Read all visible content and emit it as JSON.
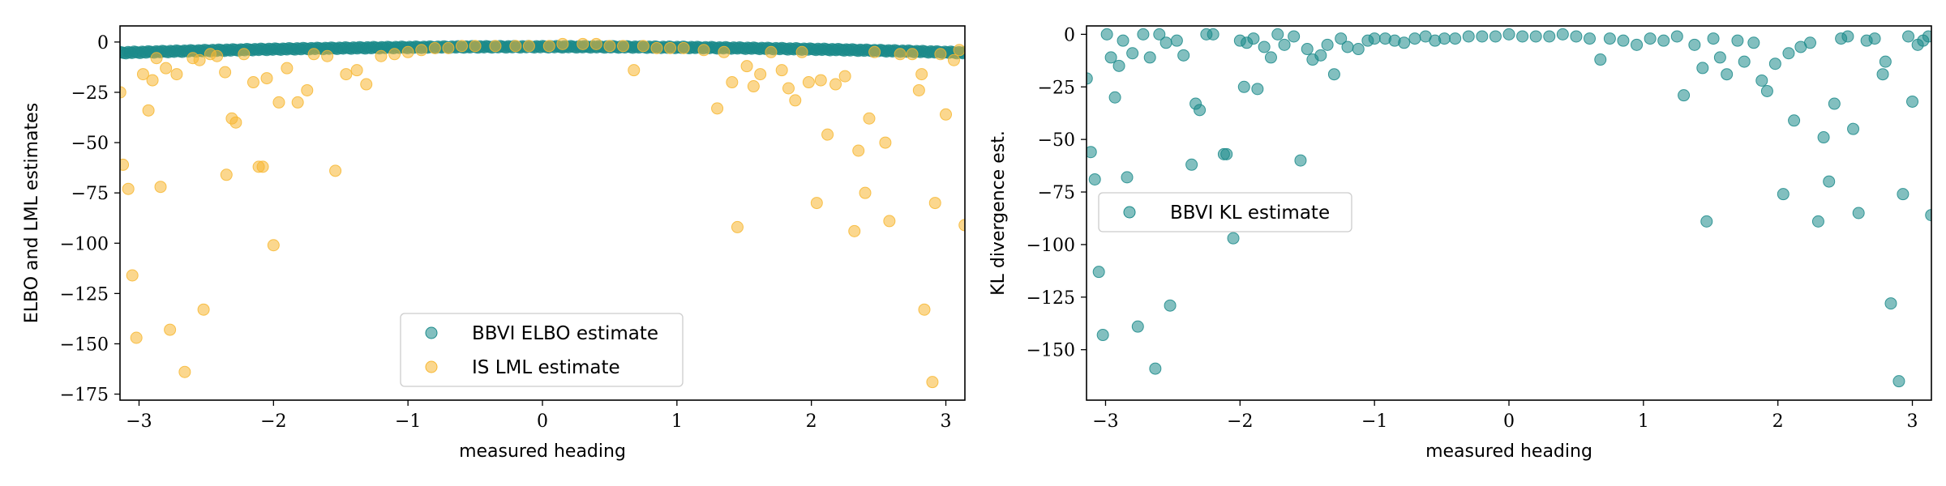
{
  "chart_data": [
    {
      "type": "scatter",
      "xlabel": "measured heading",
      "ylabel": "ELBO and LML estimates",
      "xlim": [
        -3.14159,
        3.14159
      ],
      "ylim": [
        -178,
        8
      ],
      "xticks": [
        -3,
        -2,
        -1,
        0,
        1,
        2,
        3
      ],
      "yticks": [
        0,
        -25,
        -50,
        -75,
        -100,
        -125,
        -150,
        -175
      ],
      "xtick_labels": [
        "−3",
        "−2",
        "−1",
        "0",
        "1",
        "2",
        "3"
      ],
      "ytick_labels": [
        "0",
        "−25",
        "−50",
        "−75",
        "−100",
        "−125",
        "−150",
        "−175"
      ],
      "legend_position": "lower-center",
      "series": [
        {
          "name": "BBVI ELBO estimate",
          "color": "#1b8a8a",
          "band_note": "dense band of ~400 points from about -5 at the edges to about -2 near 0",
          "points": []
        },
        {
          "name": "IS LML estimate",
          "color": "#f7b731",
          "points": [
            [
              -3.14,
              -25
            ],
            [
              -3.12,
              -61
            ],
            [
              -3.08,
              -73
            ],
            [
              -3.05,
              -116
            ],
            [
              -3.02,
              -147
            ],
            [
              -2.97,
              -16
            ],
            [
              -2.93,
              -34
            ],
            [
              -2.9,
              -19
            ],
            [
              -2.87,
              -8
            ],
            [
              -2.84,
              -72
            ],
            [
              -2.8,
              -13
            ],
            [
              -2.77,
              -143
            ],
            [
              -2.72,
              -16
            ],
            [
              -2.66,
              -164
            ],
            [
              -2.6,
              -8
            ],
            [
              -2.55,
              -9
            ],
            [
              -2.52,
              -133
            ],
            [
              -2.47,
              -6
            ],
            [
              -2.42,
              -7
            ],
            [
              -2.36,
              -15
            ],
            [
              -2.35,
              -66
            ],
            [
              -2.31,
              -38
            ],
            [
              -2.28,
              -40
            ],
            [
              -2.22,
              -6
            ],
            [
              -2.15,
              -20
            ],
            [
              -2.11,
              -62
            ],
            [
              -2.08,
              -62
            ],
            [
              -2.05,
              -18
            ],
            [
              -2.0,
              -101
            ],
            [
              -1.96,
              -30
            ],
            [
              -1.9,
              -13
            ],
            [
              -1.82,
              -30
            ],
            [
              -1.75,
              -24
            ],
            [
              -1.7,
              -6
            ],
            [
              -1.6,
              -7
            ],
            [
              -1.54,
              -64
            ],
            [
              -1.46,
              -16
            ],
            [
              -1.38,
              -14
            ],
            [
              -1.31,
              -21
            ],
            [
              -1.2,
              -7
            ],
            [
              -1.1,
              -6
            ],
            [
              -1.0,
              -5
            ],
            [
              -0.9,
              -4
            ],
            [
              -0.8,
              -3
            ],
            [
              -0.7,
              -3
            ],
            [
              -0.6,
              -2
            ],
            [
              -0.5,
              -2
            ],
            [
              -0.35,
              -2
            ],
            [
              -0.2,
              -2
            ],
            [
              -0.1,
              -2
            ],
            [
              0.05,
              -2
            ],
            [
              0.15,
              -1
            ],
            [
              0.3,
              -1
            ],
            [
              0.4,
              -1
            ],
            [
              0.5,
              -2
            ],
            [
              0.6,
              -2
            ],
            [
              0.68,
              -14
            ],
            [
              0.75,
              -2
            ],
            [
              0.85,
              -3
            ],
            [
              0.95,
              -3
            ],
            [
              1.05,
              -3
            ],
            [
              1.2,
              -4
            ],
            [
              1.3,
              -33
            ],
            [
              1.35,
              -5
            ],
            [
              1.41,
              -20
            ],
            [
              1.45,
              -92
            ],
            [
              1.52,
              -12
            ],
            [
              1.57,
              -22
            ],
            [
              1.62,
              -16
            ],
            [
              1.7,
              -5
            ],
            [
              1.78,
              -14
            ],
            [
              1.83,
              -23
            ],
            [
              1.88,
              -29
            ],
            [
              1.93,
              -5
            ],
            [
              1.98,
              -20
            ],
            [
              2.04,
              -80
            ],
            [
              2.07,
              -19
            ],
            [
              2.12,
              -46
            ],
            [
              2.18,
              -21
            ],
            [
              2.25,
              -17
            ],
            [
              2.32,
              -94
            ],
            [
              2.35,
              -54
            ],
            [
              2.4,
              -75
            ],
            [
              2.43,
              -38
            ],
            [
              2.47,
              -5
            ],
            [
              2.55,
              -50
            ],
            [
              2.58,
              -89
            ],
            [
              2.66,
              -6
            ],
            [
              2.75,
              -6
            ],
            [
              2.8,
              -24
            ],
            [
              2.82,
              -16
            ],
            [
              2.84,
              -133
            ],
            [
              2.9,
              -169
            ],
            [
              2.92,
              -80
            ],
            [
              2.96,
              -6
            ],
            [
              3.0,
              -36
            ],
            [
              3.06,
              -9
            ],
            [
              3.1,
              -4
            ],
            [
              3.14,
              -91
            ]
          ]
        }
      ]
    },
    {
      "type": "scatter",
      "xlabel": "measured heading",
      "ylabel": "KL divergence est.",
      "xlim": [
        -3.14159,
        3.14159
      ],
      "ylim": [
        -174,
        4
      ],
      "xticks": [
        -3,
        -2,
        -1,
        0,
        1,
        2,
        3
      ],
      "yticks": [
        0,
        -25,
        -50,
        -75,
        -100,
        -125,
        -150
      ],
      "xtick_labels": [
        "−3",
        "−2",
        "−1",
        "0",
        "1",
        "2",
        "3"
      ],
      "ytick_labels": [
        "0",
        "−25",
        "−50",
        "−75",
        "−100",
        "−125",
        "−150"
      ],
      "legend_position": "center-left",
      "series": [
        {
          "name": "BBVI KL estimate",
          "color": "#1b8a8a",
          "points": [
            [
              -3.14,
              -21
            ],
            [
              -3.11,
              -56
            ],
            [
              -3.08,
              -69
            ],
            [
              -3.05,
              -113
            ],
            [
              -3.02,
              -143
            ],
            [
              -2.99,
              0
            ],
            [
              -2.96,
              -11
            ],
            [
              -2.93,
              -30
            ],
            [
              -2.9,
              -15
            ],
            [
              -2.87,
              -3
            ],
            [
              -2.84,
              -68
            ],
            [
              -2.8,
              -9
            ],
            [
              -2.76,
              -139
            ],
            [
              -2.72,
              0
            ],
            [
              -2.67,
              -11
            ],
            [
              -2.63,
              -159
            ],
            [
              -2.6,
              0
            ],
            [
              -2.55,
              -4
            ],
            [
              -2.52,
              -129
            ],
            [
              -2.47,
              -3
            ],
            [
              -2.42,
              -10
            ],
            [
              -2.36,
              -62
            ],
            [
              -2.33,
              -33
            ],
            [
              -2.3,
              -36
            ],
            [
              -2.25,
              0
            ],
            [
              -2.2,
              0
            ],
            [
              -2.12,
              -57
            ],
            [
              -2.1,
              -57
            ],
            [
              -2.05,
              -97
            ],
            [
              -2.0,
              -3
            ],
            [
              -1.97,
              -25
            ],
            [
              -1.95,
              -4
            ],
            [
              -1.9,
              -2
            ],
            [
              -1.87,
              -26
            ],
            [
              -1.82,
              -6
            ],
            [
              -1.77,
              -11
            ],
            [
              -1.72,
              0
            ],
            [
              -1.67,
              -5
            ],
            [
              -1.6,
              -1
            ],
            [
              -1.55,
              -60
            ],
            [
              -1.5,
              -7
            ],
            [
              -1.46,
              -12
            ],
            [
              -1.4,
              -10
            ],
            [
              -1.35,
              -5
            ],
            [
              -1.3,
              -19
            ],
            [
              -1.25,
              -2
            ],
            [
              -1.2,
              -6
            ],
            [
              -1.12,
              -7
            ],
            [
              -1.05,
              -3
            ],
            [
              -1.0,
              -2
            ],
            [
              -0.92,
              -2
            ],
            [
              -0.85,
              -3
            ],
            [
              -0.78,
              -4
            ],
            [
              -0.7,
              -2
            ],
            [
              -0.62,
              -1
            ],
            [
              -0.55,
              -3
            ],
            [
              -0.48,
              -2
            ],
            [
              -0.4,
              -2
            ],
            [
              -0.3,
              -1
            ],
            [
              -0.2,
              -1
            ],
            [
              -0.1,
              -1
            ],
            [
              0.0,
              0
            ],
            [
              0.1,
              -1
            ],
            [
              0.2,
              -1
            ],
            [
              0.3,
              -1
            ],
            [
              0.4,
              0
            ],
            [
              0.5,
              -1
            ],
            [
              0.6,
              -2
            ],
            [
              0.68,
              -12
            ],
            [
              0.75,
              -2
            ],
            [
              0.85,
              -3
            ],
            [
              0.95,
              -5
            ],
            [
              1.05,
              -2
            ],
            [
              1.15,
              -3
            ],
            [
              1.25,
              -1
            ],
            [
              1.3,
              -29
            ],
            [
              1.38,
              -5
            ],
            [
              1.44,
              -16
            ],
            [
              1.47,
              -89
            ],
            [
              1.52,
              -2
            ],
            [
              1.57,
              -11
            ],
            [
              1.62,
              -19
            ],
            [
              1.7,
              -3
            ],
            [
              1.75,
              -13
            ],
            [
              1.82,
              -4
            ],
            [
              1.88,
              -22
            ],
            [
              1.92,
              -27
            ],
            [
              1.98,
              -14
            ],
            [
              2.04,
              -76
            ],
            [
              2.08,
              -9
            ],
            [
              2.12,
              -41
            ],
            [
              2.17,
              -6
            ],
            [
              2.24,
              -4
            ],
            [
              2.3,
              -89
            ],
            [
              2.34,
              -49
            ],
            [
              2.38,
              -70
            ],
            [
              2.42,
              -33
            ],
            [
              2.47,
              -2
            ],
            [
              2.52,
              -1
            ],
            [
              2.56,
              -45
            ],
            [
              2.6,
              -85
            ],
            [
              2.66,
              -3
            ],
            [
              2.72,
              -2
            ],
            [
              2.78,
              -19
            ],
            [
              2.8,
              -13
            ],
            [
              2.84,
              -128
            ],
            [
              2.9,
              -165
            ],
            [
              2.93,
              -76
            ],
            [
              2.97,
              -1
            ],
            [
              3.0,
              -32
            ],
            [
              3.04,
              -5
            ],
            [
              3.08,
              -3
            ],
            [
              3.12,
              -1
            ],
            [
              3.14,
              -86
            ]
          ]
        }
      ]
    }
  ]
}
